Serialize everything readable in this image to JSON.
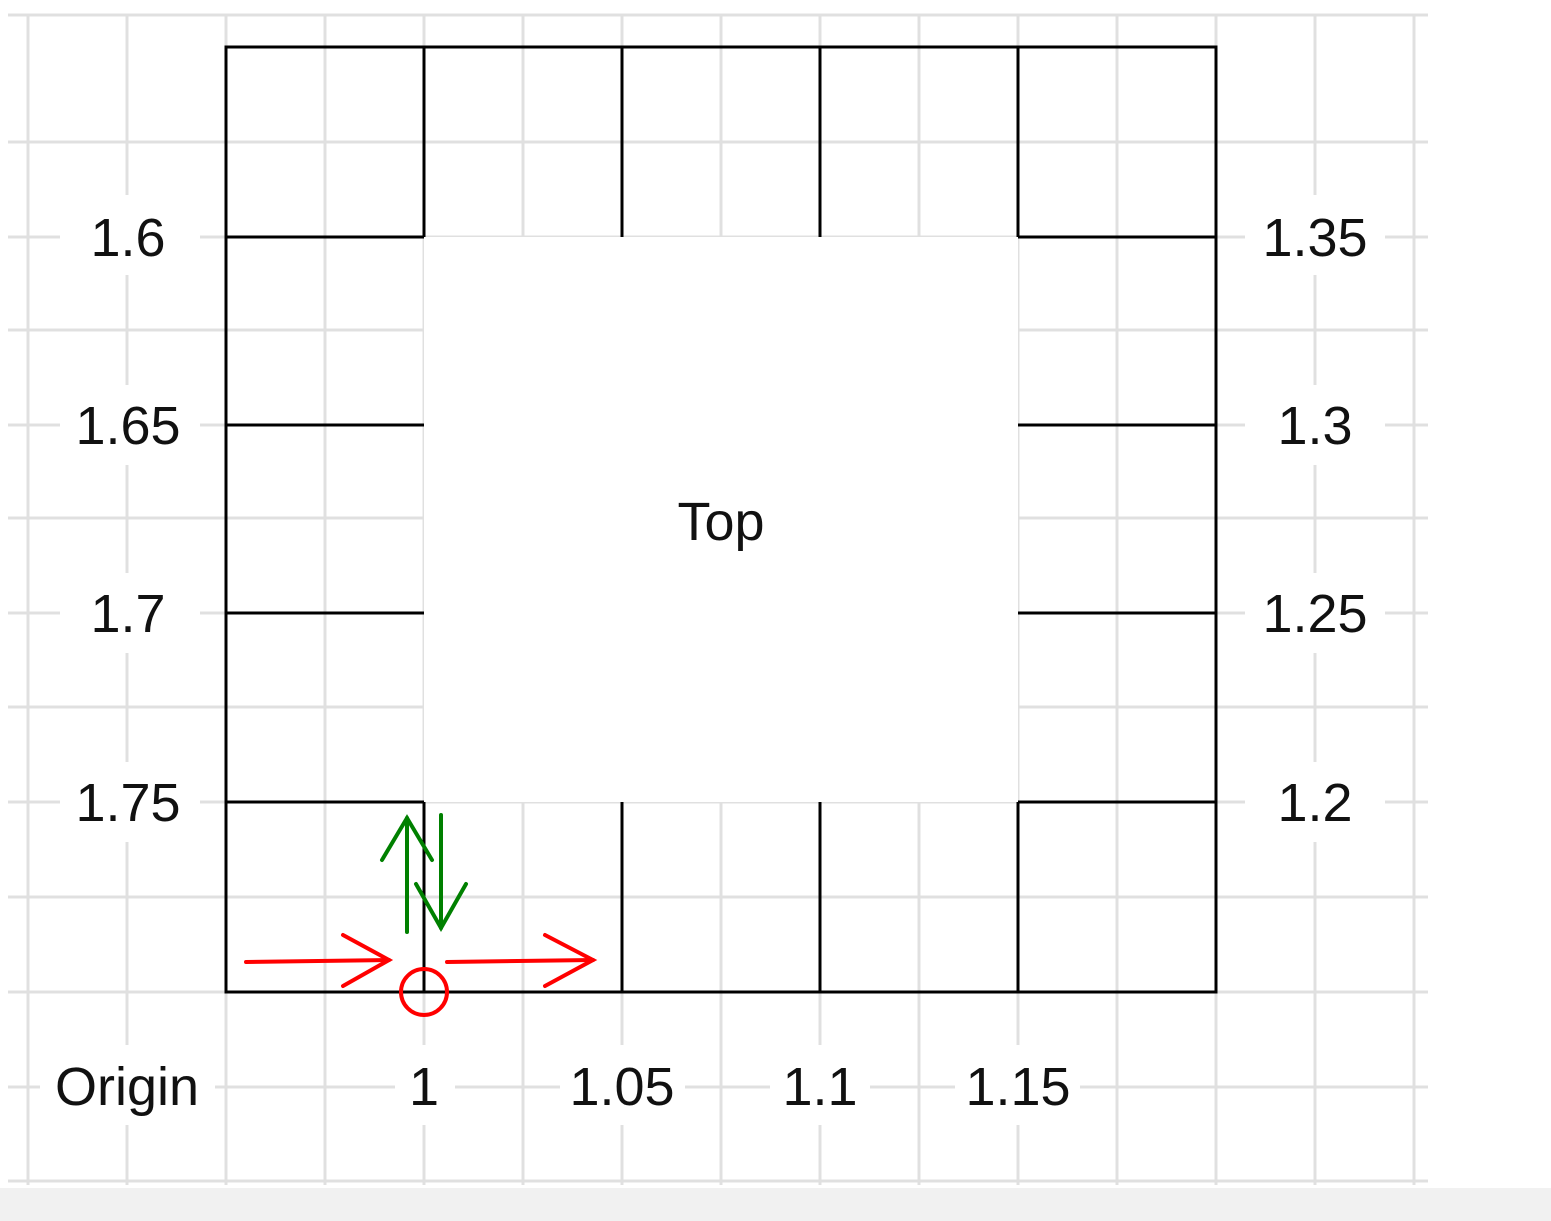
{
  "diagram": {
    "center_label": "Top",
    "origin_label": "Origin",
    "left_labels": [
      "1.6",
      "1.65",
      "1.7",
      "1.75"
    ],
    "right_labels": [
      "1.35",
      "1.3",
      "1.25",
      "1.2"
    ],
    "bottom_labels": [
      "1",
      "1.05",
      "1.1",
      "1.15"
    ],
    "colors": {
      "grid": "#e0e0e0",
      "outline": "#000000",
      "red_arrow": "#ff0000",
      "green_arrow": "#008000"
    },
    "icons": [
      "right-arrow-icon",
      "up-arrow-icon",
      "down-arrow-icon",
      "circle-marker-icon"
    ]
  }
}
